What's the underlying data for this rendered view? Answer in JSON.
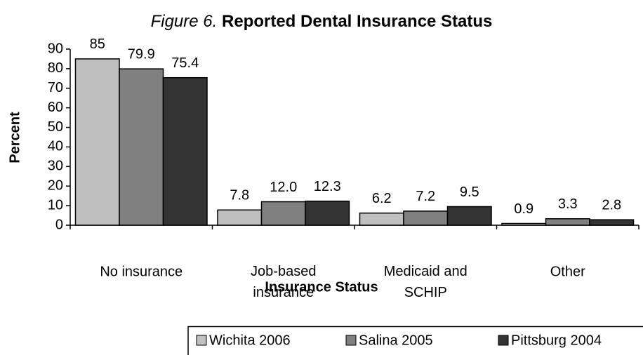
{
  "chart_data": {
    "type": "bar",
    "title_prefix": "Figure 6.",
    "title": "Reported Dental Insurance Status",
    "x_label": "Insurance Status",
    "y_label": "Percent",
    "categories": [
      "No insurance",
      "Job-based\ninsurance",
      "Medicaid and\nSCHIP",
      "Other"
    ],
    "series": [
      {
        "name": "Wichita 2006",
        "color": "#c0c0c0",
        "values": [
          85,
          7.8,
          6.2,
          0.9
        ],
        "value_labels": [
          "85",
          "7.8",
          "6.2",
          "0.9"
        ]
      },
      {
        "name": "Salina 2005",
        "color": "#808080",
        "values": [
          79.9,
          12.0,
          7.2,
          3.3
        ],
        "value_labels": [
          "79.9",
          "12.0",
          "7.2",
          "3.3"
        ]
      },
      {
        "name": "Pittsburg 2004",
        "color": "#333333",
        "values": [
          75.4,
          12.3,
          9.5,
          2.8
        ],
        "value_labels": [
          "75.4",
          "12.3",
          "9.5",
          "2.8"
        ]
      }
    ],
    "ylim": [
      0,
      90
    ],
    "yticks": [
      0,
      10,
      20,
      30,
      40,
      50,
      60,
      70,
      80,
      90
    ],
    "grid": false,
    "legend": "bottom"
  }
}
